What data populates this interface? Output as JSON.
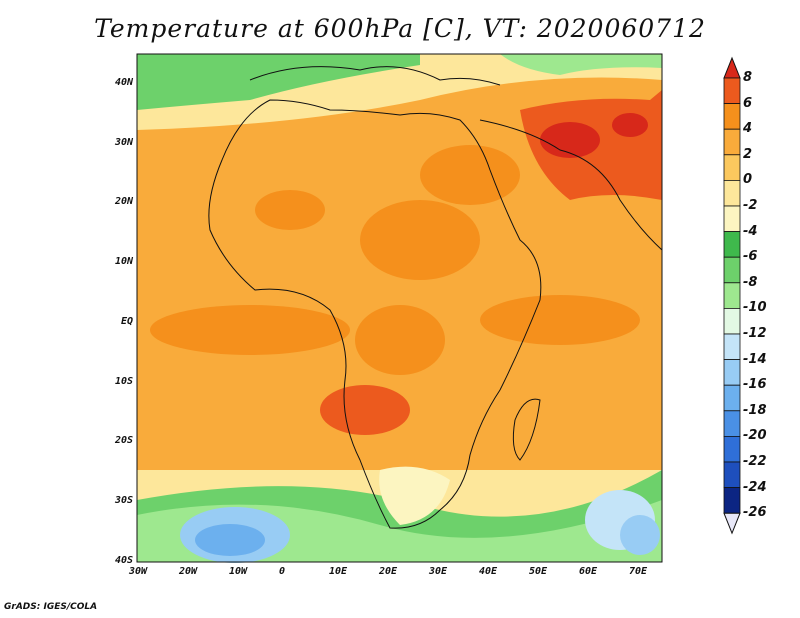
{
  "title": "Temperature at 600hPa [C], VT: 2020060712",
  "credit": "GrADS: IGES/COLA",
  "map": {
    "lon_range": [
      -30,
      75
    ],
    "lat_range": [
      -40,
      45
    ],
    "lat_ticks": [
      "40N",
      "30N",
      "20N",
      "10N",
      "EQ",
      "10S",
      "20S",
      "30S",
      "40S"
    ],
    "lon_ticks": [
      "30W",
      "20W",
      "10W",
      "0",
      "10E",
      "20E",
      "30E",
      "40E",
      "50E",
      "60E",
      "70E"
    ]
  },
  "colorbar": {
    "labels": [
      "8",
      "6",
      "4",
      "2",
      "0",
      "-2",
      "-4",
      "-6",
      "-8",
      "-10",
      "-12",
      "-14",
      "-16",
      "-18",
      "-20",
      "-22",
      "-24",
      "-26"
    ],
    "colors": [
      "#d7281a",
      "#ec5a1e",
      "#f5901c",
      "#f9ab3b",
      "#fbc85e",
      "#fde79b",
      "#fcf5c1",
      "#3fb94c",
      "#6dd16b",
      "#9ee88f",
      "#e3f9e4",
      "#c4e4f8",
      "#98ccf4",
      "#6cb0ee",
      "#4a90e5",
      "#2f6fd8",
      "#1e4fbd",
      "#0c2583",
      "#e8e8f8"
    ]
  }
}
